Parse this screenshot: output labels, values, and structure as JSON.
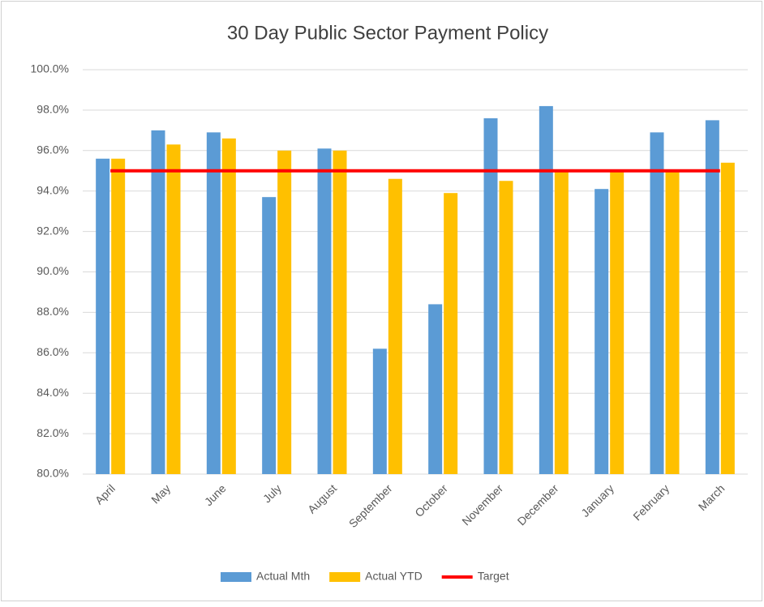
{
  "chart_data": {
    "type": "bar",
    "title": "30 Day Public Sector Payment Policy",
    "categories": [
      "April",
      "May",
      "June",
      "July",
      "August",
      "September",
      "October",
      "November",
      "December",
      "January",
      "February",
      "March"
    ],
    "series": [
      {
        "name": "Actual Mth",
        "color": "#5b9bd5",
        "values": [
          95.6,
          97.0,
          96.9,
          93.7,
          96.1,
          86.2,
          88.4,
          97.6,
          98.2,
          94.1,
          96.9,
          97.5
        ]
      },
      {
        "name": "Actual YTD",
        "color": "#ffc000",
        "values": [
          95.6,
          96.3,
          96.6,
          96.0,
          96.0,
          94.6,
          93.9,
          94.5,
          95.0,
          95.0,
          95.0,
          95.4
        ]
      },
      {
        "name": "Target",
        "color": "#ff0000",
        "type": "line",
        "values": [
          95,
          95,
          95,
          95,
          95,
          95,
          95,
          95,
          95,
          95,
          95,
          95
        ]
      }
    ],
    "ylim": [
      80,
      100
    ],
    "yticks": [
      {
        "value": 80,
        "label": "80.0%"
      },
      {
        "value": 82,
        "label": "82.0%"
      },
      {
        "value": 84,
        "label": "84.0%"
      },
      {
        "value": 86,
        "label": "86.0%"
      },
      {
        "value": 88,
        "label": "88.0%"
      },
      {
        "value": 90,
        "label": "90.0%"
      },
      {
        "value": 92,
        "label": "92.0%"
      },
      {
        "value": 94,
        "label": "94.0%"
      },
      {
        "value": 96,
        "label": "96.0%"
      },
      {
        "value": 98,
        "label": "98.0%"
      },
      {
        "value": 100,
        "label": "100.0%"
      }
    ],
    "grid": true,
    "legend": "bottom"
  }
}
